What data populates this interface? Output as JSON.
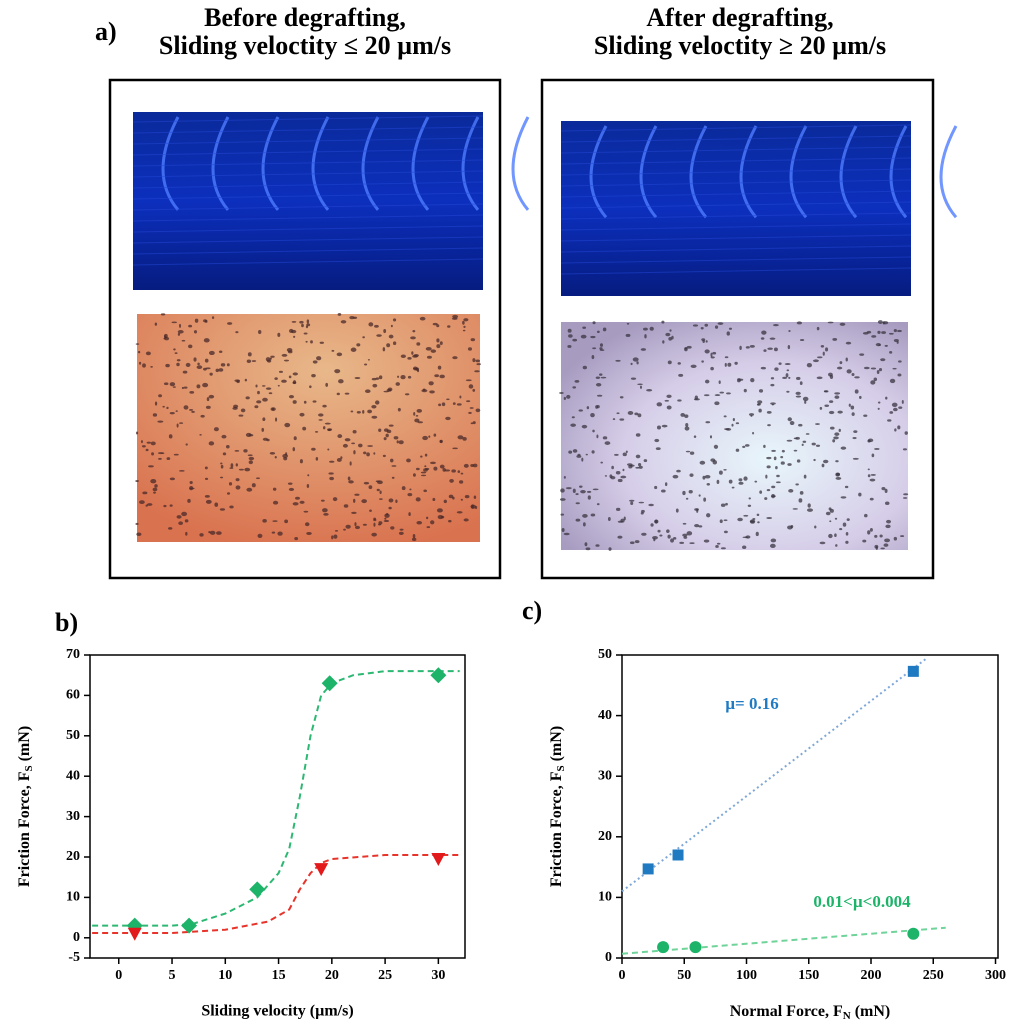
{
  "panel_a": {
    "label": "a)",
    "left_title": [
      "Before degrafting,",
      "Sliding veloctity ≤ 20 µm/s"
    ],
    "right_title": [
      "After degrafting,",
      "Sliding veloctity ≥ 20 µm/s"
    ]
  },
  "chart_data": [
    {
      "type": "scatter",
      "panel_label": "b)",
      "xlabel": "Sliding velocity (µm/s)",
      "ylabel": {
        "main": "Friction Force, F",
        "sub": "S",
        "unit": "(mN)"
      },
      "xlim": [
        -2.7,
        32.5
      ],
      "ylim": [
        -5,
        70
      ],
      "xticks": [
        0,
        5,
        10,
        15,
        20,
        25,
        30
      ],
      "yticks": [
        -5,
        0,
        10,
        20,
        30,
        40,
        50,
        60,
        70
      ],
      "series": [
        {
          "color": "#2cb872",
          "style": "dashed",
          "x": [
            -2.5,
            5,
            7,
            10,
            13,
            15,
            16,
            17,
            18,
            19,
            20,
            22,
            25,
            32
          ],
          "values": [
            3,
            3,
            3.5,
            6,
            10,
            16,
            22,
            35,
            50,
            60,
            63,
            65,
            66,
            66
          ]
        },
        {
          "color": "#e8332a",
          "style": "dashed",
          "x": [
            -2.5,
            5,
            10,
            14,
            16,
            17,
            18,
            19,
            20,
            25,
            32
          ],
          "values": [
            1.2,
            1.2,
            2,
            4,
            7,
            12,
            16,
            18.5,
            19.5,
            20.5,
            20.5
          ]
        },
        {
          "color": "#1db369",
          "marker": "diamond",
          "x": [
            1.5,
            6.6,
            13,
            19.8,
            30
          ],
          "values": [
            3,
            3,
            12,
            63,
            65
          ]
        },
        {
          "color": "#e31a1c",
          "marker": "triangle",
          "x": [
            1.5,
            19,
            30
          ],
          "values": [
            1,
            17,
            19.5
          ]
        }
      ]
    },
    {
      "type": "scatter",
      "panel_label": "c)",
      "xlabel": {
        "main": "Normal Force, F",
        "sub": "N",
        "unit": "(mN)"
      },
      "ylabel": {
        "main": "Friction Force, F",
        "sub": "S",
        "unit": "(mN)"
      },
      "xlim": [
        0,
        302
      ],
      "ylim": [
        0,
        50
      ],
      "xticks": [
        0,
        50,
        100,
        150,
        200,
        250,
        300
      ],
      "yticks": [
        0,
        10,
        20,
        30,
        40,
        50
      ],
      "series": [
        {
          "color": "#7fa8d8",
          "style": "dotted",
          "x": [
            0,
            245
          ],
          "values": [
            11,
            49.5
          ]
        },
        {
          "color": "#6fd39a",
          "style": "dashed",
          "x": [
            0,
            260
          ],
          "values": [
            0.7,
            5
          ]
        },
        {
          "color": "#1f7ac2",
          "marker": "square",
          "x": [
            21,
            45,
            234
          ],
          "values": [
            14.7,
            17,
            47.3
          ]
        },
        {
          "color": "#1db369",
          "marker": "circle",
          "x": [
            33,
            59,
            234
          ],
          "values": [
            1.8,
            1.8,
            4
          ]
        }
      ],
      "annotations": [
        {
          "text": "µ= 0.16",
          "color": "#1f7ac2"
        },
        {
          "text": "0.01<µ<0.004",
          "color": "#1db369"
        }
      ]
    }
  ]
}
